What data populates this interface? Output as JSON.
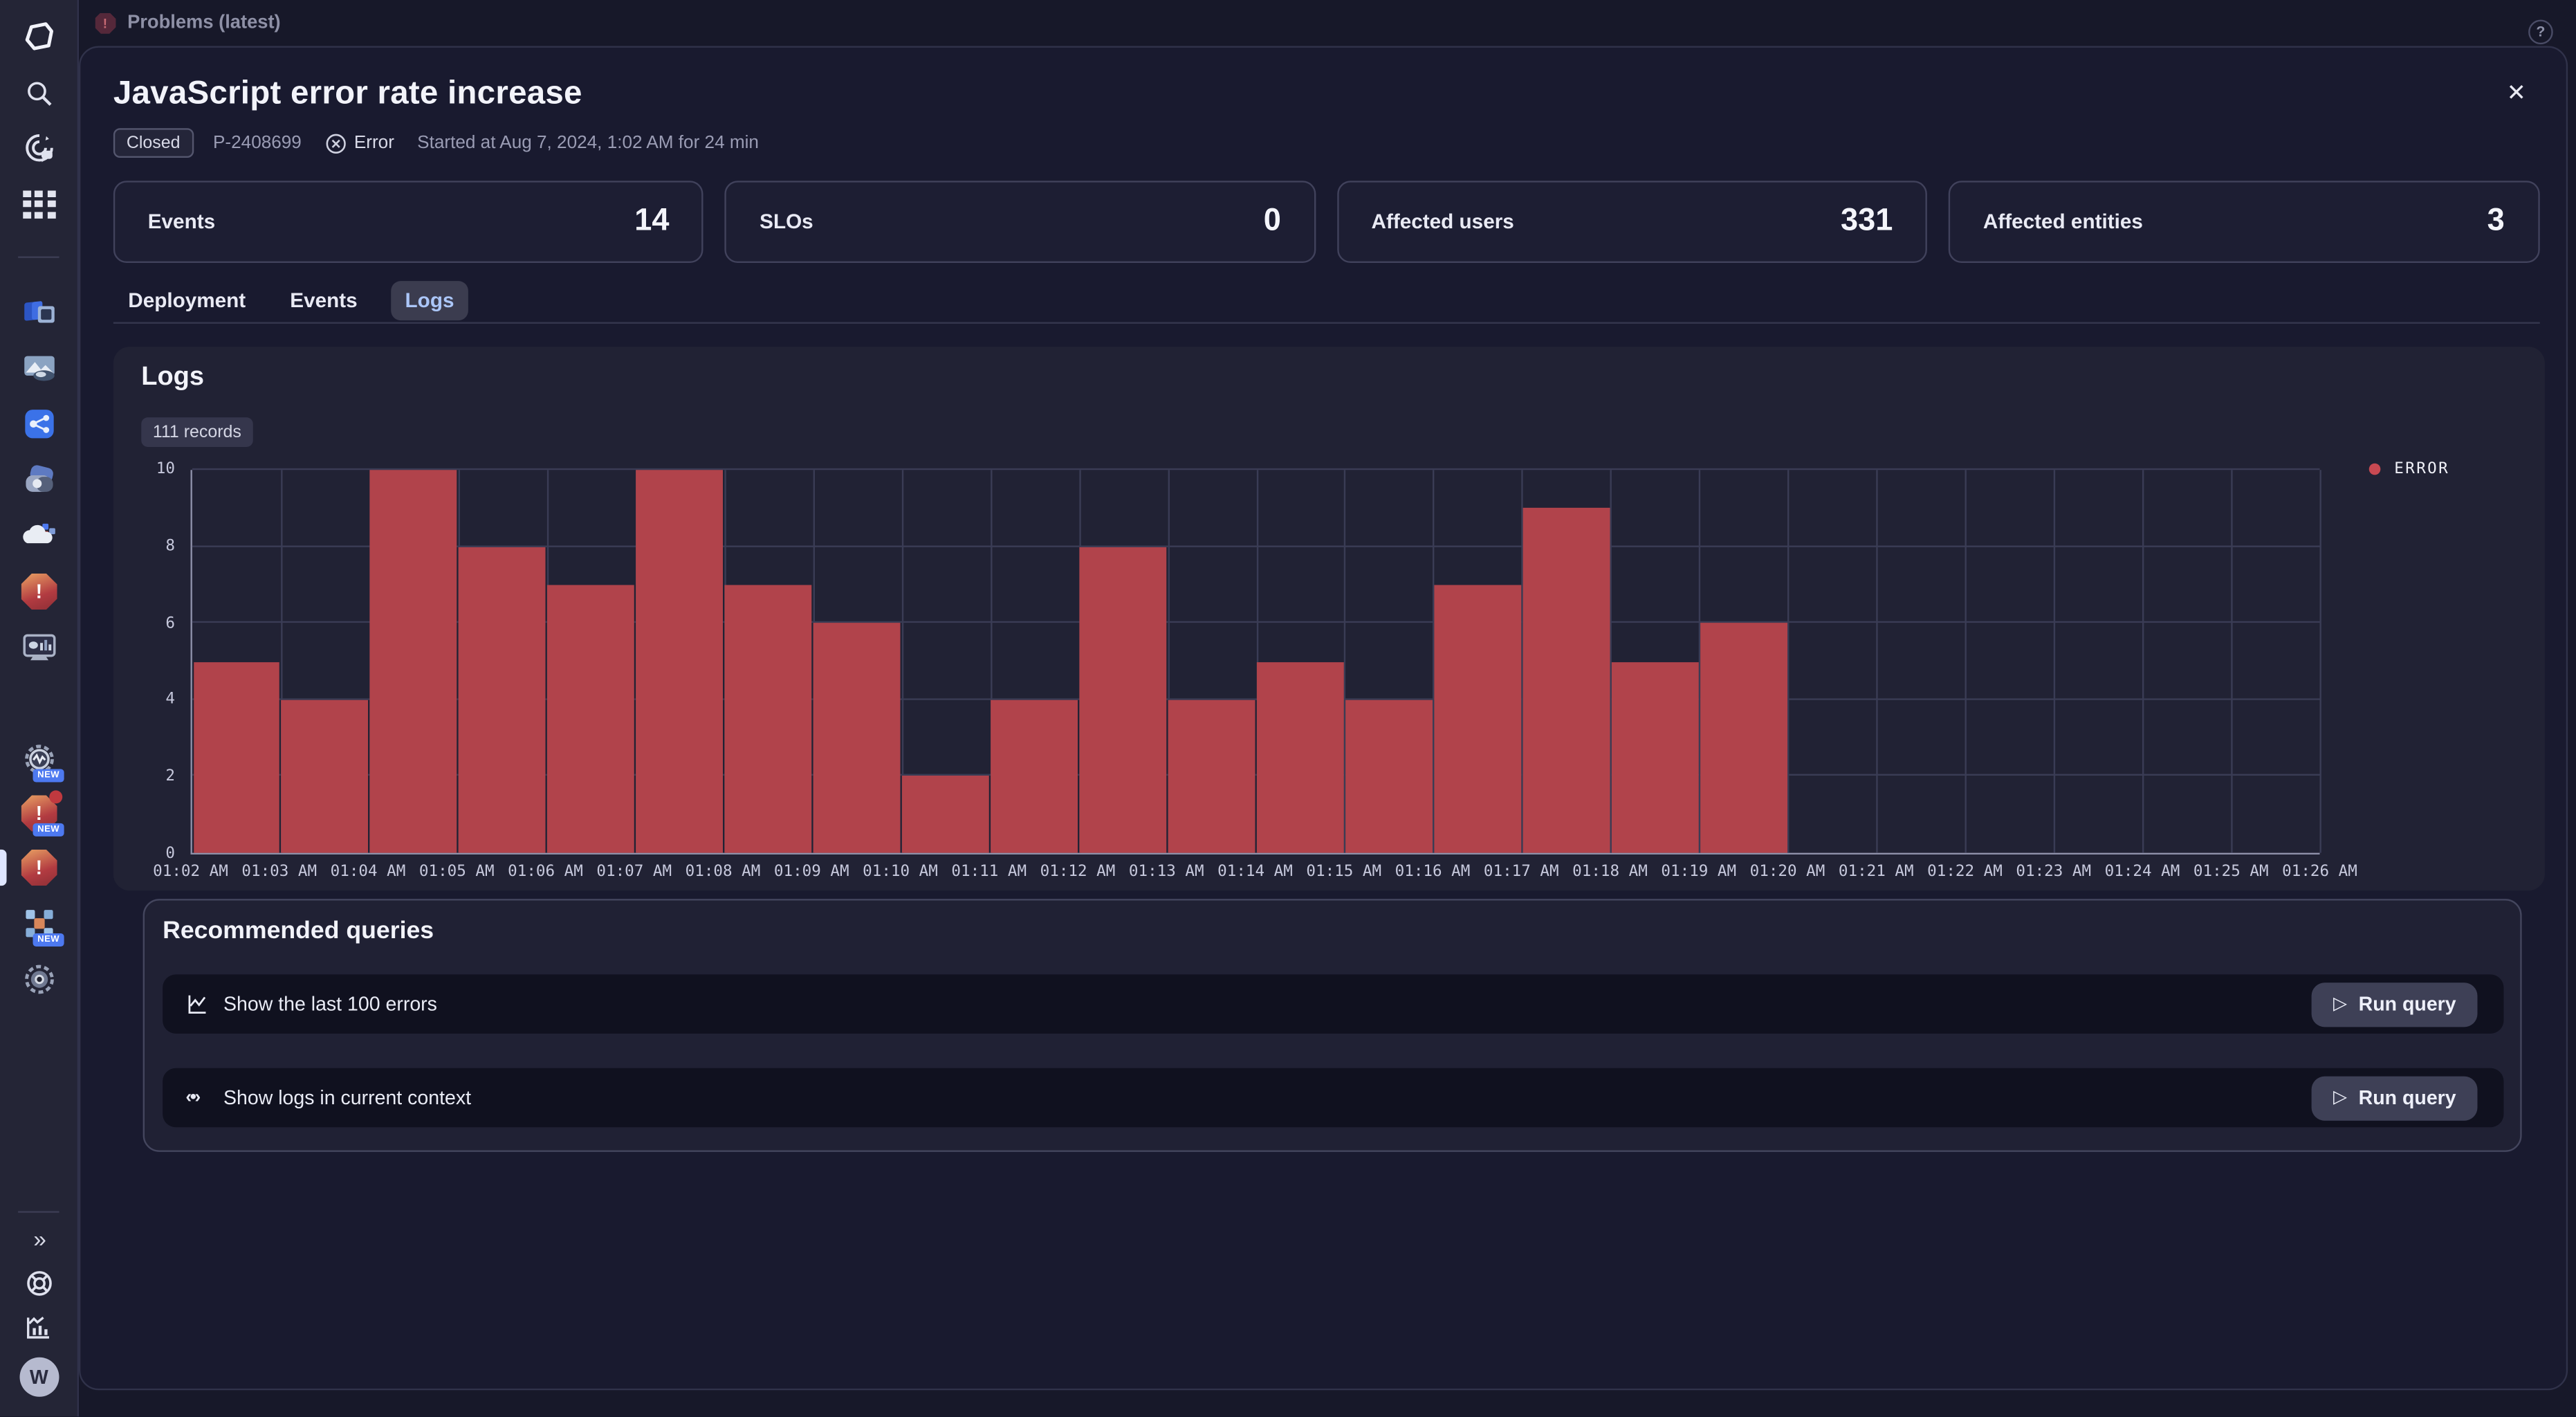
{
  "topbar": {
    "title": "Problems (latest)",
    "help": "?"
  },
  "sidebar": {
    "new_badge": "NEW",
    "avatar_initial": "W",
    "expand_glyph": "»",
    "items": [
      "dynatrace-logo",
      "search",
      "copilot",
      "apps-grid",
      "hosts",
      "smartscape",
      "services",
      "traces",
      "clouds",
      "problems",
      "dashboards",
      "automations-new",
      "problems-app-new",
      "problems-classic-active",
      "kubernetes-new",
      "settings",
      "expand",
      "help",
      "usage",
      "account"
    ]
  },
  "header": {
    "title": "JavaScript error rate increase",
    "status_chip": "Closed",
    "problem_id": "P-2408699",
    "severity_label": "Error",
    "started_text": "Started at Aug 7, 2024, 1:02 AM for 24 min",
    "close_glyph": "✕"
  },
  "stats": {
    "cards": [
      {
        "label": "Events",
        "value": "14"
      },
      {
        "label": "SLOs",
        "value": "0"
      },
      {
        "label": "Affected users",
        "value": "331"
      },
      {
        "label": "Affected entities",
        "value": "3"
      }
    ]
  },
  "tabs": [
    {
      "label": "Deployment"
    },
    {
      "label": "Events"
    },
    {
      "label": "Logs"
    }
  ],
  "logs": {
    "title": "Logs",
    "records_badge": "111 records"
  },
  "chart_data": {
    "type": "bar",
    "title": "Log records histogram (1-minute bins)",
    "categories": [
      "01:02 AM",
      "01:03 AM",
      "01:04 AM",
      "01:05 AM",
      "01:06 AM",
      "01:07 AM",
      "01:08 AM",
      "01:09 AM",
      "01:10 AM",
      "01:11 AM",
      "01:12 AM",
      "01:13 AM",
      "01:14 AM",
      "01:15 AM",
      "01:16 AM",
      "01:17 AM",
      "01:18 AM",
      "01:19 AM",
      "01:20 AM",
      "01:21 AM",
      "01:22 AM",
      "01:23 AM",
      "01:24 AM",
      "01:25 AM"
    ],
    "values": [
      5,
      4,
      10,
      8,
      7,
      10,
      7,
      6,
      2,
      4,
      8,
      4,
      5,
      4,
      7,
      9,
      5,
      6,
      0,
      0,
      0,
      0,
      0,
      0
    ],
    "x_tick_labels": [
      "01:02 AM",
      "01:03 AM",
      "01:04 AM",
      "01:05 AM",
      "01:06 AM",
      "01:07 AM",
      "01:08 AM",
      "01:09 AM",
      "01:10 AM",
      "01:11 AM",
      "01:12 AM",
      "01:13 AM",
      "01:14 AM",
      "01:15 AM",
      "01:16 AM",
      "01:17 AM",
      "01:18 AM",
      "01:19 AM",
      "01:20 AM",
      "01:21 AM",
      "01:22 AM",
      "01:23 AM",
      "01:24 AM",
      "01:25 AM",
      "01:26 AM"
    ],
    "xlabel": "",
    "ylabel": "",
    "ylim": [
      0,
      10
    ],
    "y_ticks": [
      0,
      2,
      4,
      6,
      8,
      10
    ],
    "grid": true,
    "bar_color": "#b1434b",
    "legend_position": "top-right",
    "legend": [
      {
        "label": "ERROR",
        "color": "#c84952"
      }
    ]
  },
  "recommended": {
    "title": "Recommended queries",
    "rows": [
      {
        "icon": "line-chart-icon",
        "label": "Show the last 100 errors",
        "button": "Run query"
      },
      {
        "icon": "code-icon",
        "label": "Show logs in current context",
        "button": "Run query"
      }
    ]
  }
}
